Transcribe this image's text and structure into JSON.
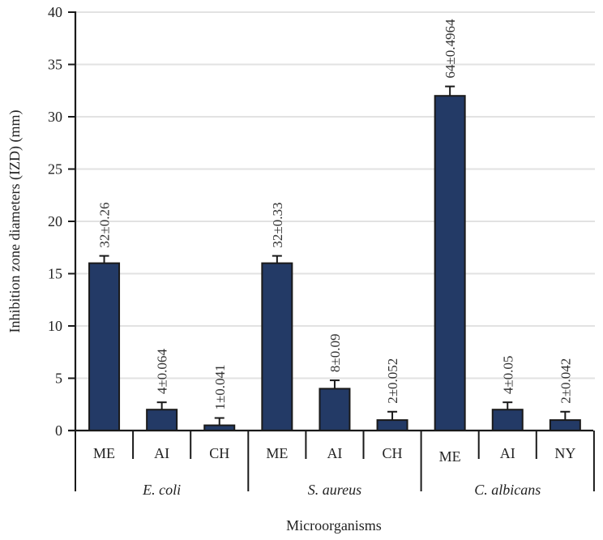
{
  "chart_data": {
    "type": "bar",
    "title": "",
    "xlabel": "Microorganisms",
    "ylabel": "Inhibition zone diameters (IZD) (mm)",
    "ylim": [
      0,
      40
    ],
    "yticks": [
      0,
      5,
      10,
      15,
      20,
      25,
      30,
      35,
      40
    ],
    "grid": true,
    "legend": "none",
    "bar_color": "#233a66",
    "groups": [
      {
        "name": "E. coli",
        "bars": [
          {
            "category": "ME",
            "value": 16,
            "error": 0.7,
            "label": "32±0.26"
          },
          {
            "category": "AI",
            "value": 2,
            "error": 0.7,
            "label": "4±0.064"
          },
          {
            "category": "CH",
            "value": 0.5,
            "error": 0.7,
            "label": "1±0.041"
          }
        ]
      },
      {
        "name": "S. aureus",
        "bars": [
          {
            "category": "ME",
            "value": 16,
            "error": 0.7,
            "label": "32±0.33"
          },
          {
            "category": "AI",
            "value": 4,
            "error": 0.8,
            "label": "8±0.09"
          },
          {
            "category": "CH",
            "value": 1,
            "error": 0.8,
            "label": "2±0.052"
          }
        ]
      },
      {
        "name": "C. albicans",
        "bars": [
          {
            "category": "ME",
            "value": 32,
            "error": 0.9,
            "label": "64±0.4964"
          },
          {
            "category": "AI",
            "value": 2,
            "error": 0.7,
            "label": "4±0.05"
          },
          {
            "category": "NY",
            "value": 1,
            "error": 0.8,
            "label": "2±0.042"
          }
        ]
      }
    ]
  }
}
